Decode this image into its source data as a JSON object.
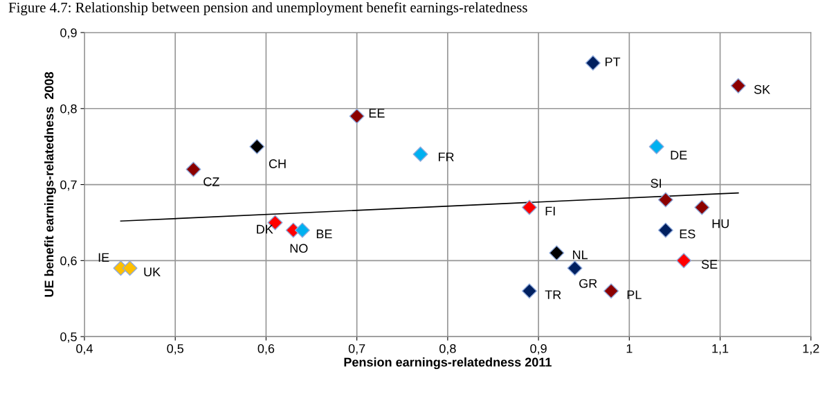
{
  "chart_data": {
    "type": "scatter",
    "title": "Figure 4.7: Relationship between pension and unemployment benefit earnings-relatedness",
    "xlabel": "Pension earnings-relatedness 2011",
    "ylabel": "UE benefit earnings-relatedness  2008",
    "series": [
      {
        "marker": "diamond",
        "x": [
          0.44,
          0.45,
          0.52,
          0.59,
          0.61,
          0.63,
          0.64,
          0.7,
          0.77,
          0.89,
          0.89,
          0.92,
          0.94,
          0.96,
          0.98,
          1.03,
          1.04,
          1.04,
          1.06,
          1.08,
          1.12
        ],
        "values": [
          0.59,
          0.59,
          0.72,
          0.75,
          0.65,
          0.64,
          0.64,
          0.79,
          0.74,
          0.67,
          0.56,
          0.61,
          0.59,
          0.86,
          0.56,
          0.75,
          0.68,
          0.64,
          0.6,
          0.67,
          0.83
        ],
        "colors": [
          "#ffc000",
          "#ffc000",
          "#8b0000",
          "#000000",
          "#ff0000",
          "#ff0000",
          "#00b0f0",
          "#8b0000",
          "#00b0f0",
          "#ff0000",
          "#002060",
          "#000000",
          "#002060",
          "#002060",
          "#8b0000",
          "#00b0f0",
          "#8b0000",
          "#002060",
          "#ff0000",
          "#8b0000",
          "#8b0000"
        ]
      },
      {
        "type": "line",
        "marker": "none",
        "line_style": "solid",
        "color": "#000000",
        "x": [
          0.44,
          1.12
        ],
        "values": [
          0.652,
          0.689
        ]
      }
    ],
    "annotations": [
      {
        "text": "IE",
        "x": 0.44,
        "y": 0.59
      },
      {
        "text": "UK",
        "x": 0.45,
        "y": 0.59
      },
      {
        "text": "CZ",
        "x": 0.52,
        "y": 0.72
      },
      {
        "text": "CH",
        "x": 0.59,
        "y": 0.75
      },
      {
        "text": "DK",
        "x": 0.61,
        "y": 0.65
      },
      {
        "text": "NO",
        "x": 0.63,
        "y": 0.64
      },
      {
        "text": "BE",
        "x": 0.64,
        "y": 0.64
      },
      {
        "text": "EE",
        "x": 0.7,
        "y": 0.79
      },
      {
        "text": "FR",
        "x": 0.77,
        "y": 0.74
      },
      {
        "text": "FI",
        "x": 0.89,
        "y": 0.67
      },
      {
        "text": "TR",
        "x": 0.89,
        "y": 0.56
      },
      {
        "text": "NL",
        "x": 0.92,
        "y": 0.61
      },
      {
        "text": "GR",
        "x": 0.94,
        "y": 0.59
      },
      {
        "text": "PT",
        "x": 0.96,
        "y": 0.86
      },
      {
        "text": "PL",
        "x": 0.98,
        "y": 0.56
      },
      {
        "text": "DE",
        "x": 1.03,
        "y": 0.75
      },
      {
        "text": "SI",
        "x": 1.04,
        "y": 0.68
      },
      {
        "text": "ES",
        "x": 1.04,
        "y": 0.64
      },
      {
        "text": "SE",
        "x": 1.06,
        "y": 0.6
      },
      {
        "text": "HU",
        "x": 1.08,
        "y": 0.67
      },
      {
        "text": "SK",
        "x": 1.12,
        "y": 0.83
      }
    ],
    "xlim": [
      0.4,
      1.2
    ],
    "ylim": [
      0.5,
      0.9
    ],
    "xticks": [
      {
        "value": 0.4,
        "label": "0,4"
      },
      {
        "value": 0.5,
        "label": "0,5"
      },
      {
        "value": 0.6,
        "label": "0,6"
      },
      {
        "value": 0.7,
        "label": "0,7"
      },
      {
        "value": 0.8,
        "label": "0,8"
      },
      {
        "value": 0.9,
        "label": "0,9"
      },
      {
        "value": 1,
        "label": "1"
      },
      {
        "value": 1.1,
        "label": "1,1"
      },
      {
        "value": 1.2,
        "label": "1,2"
      }
    ],
    "yticks": [
      {
        "value": 0.5,
        "label": "0,5"
      },
      {
        "value": 0.6,
        "label": "0,6"
      },
      {
        "value": 0.7,
        "label": "0,7"
      },
      {
        "value": 0.8,
        "label": "0,8"
      },
      {
        "value": 0.9,
        "label": "0,9"
      }
    ],
    "grid": true,
    "legend": false
  }
}
